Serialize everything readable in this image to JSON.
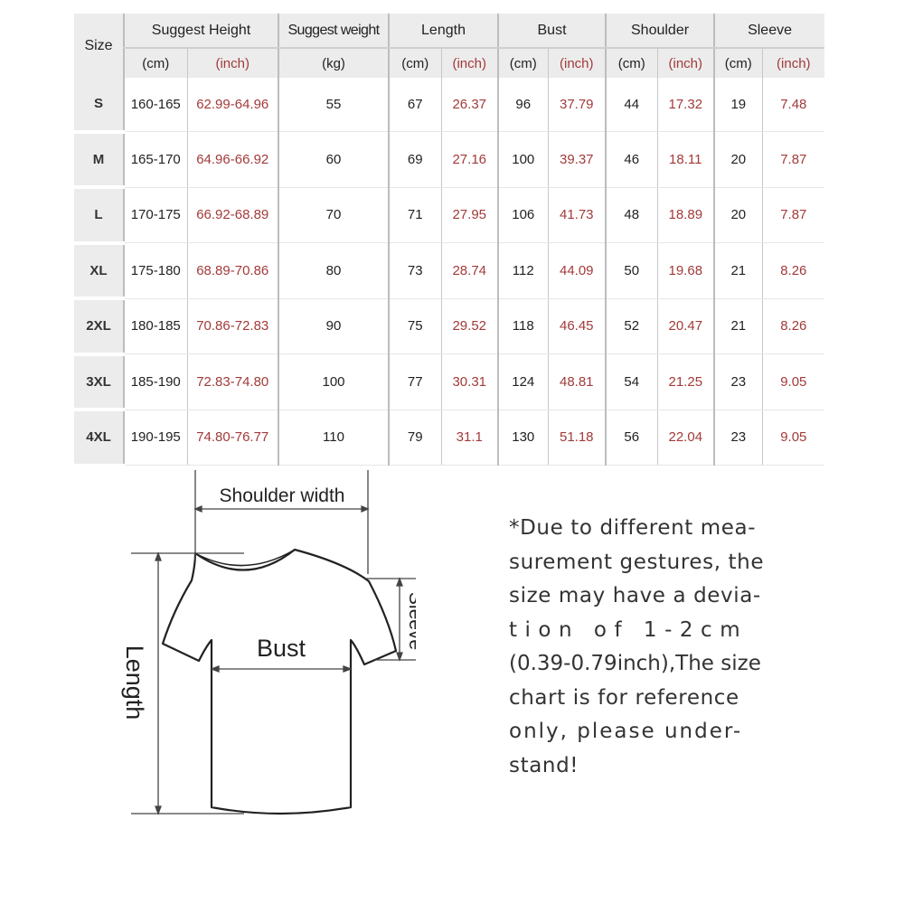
{
  "table": {
    "size_header": "Size",
    "groups": [
      "Suggest Height",
      "Suggest weight",
      "Length",
      "Bust",
      "Shoulder",
      "Sleeve"
    ],
    "units": {
      "cm": "(cm)",
      "inch": "(inch)",
      "kg": "(kg)"
    },
    "rows": [
      {
        "size": "S",
        "height_cm": "160-165",
        "height_in": "62.99-64.96",
        "weight": "55",
        "length_cm": "67",
        "length_in": "26.37",
        "bust_cm": "96",
        "bust_in": "37.79",
        "shoulder_cm": "44",
        "shoulder_in": "17.32",
        "sleeve_cm": "19",
        "sleeve_in": "7.48"
      },
      {
        "size": "M",
        "height_cm": "165-170",
        "height_in": "64.96-66.92",
        "weight": "60",
        "length_cm": "69",
        "length_in": "27.16",
        "bust_cm": "100",
        "bust_in": "39.37",
        "shoulder_cm": "46",
        "shoulder_in": "18.11",
        "sleeve_cm": "20",
        "sleeve_in": "7.87"
      },
      {
        "size": "L",
        "height_cm": "170-175",
        "height_in": "66.92-68.89",
        "weight": "70",
        "length_cm": "71",
        "length_in": "27.95",
        "bust_cm": "106",
        "bust_in": "41.73",
        "shoulder_cm": "48",
        "shoulder_in": "18.89",
        "sleeve_cm": "20",
        "sleeve_in": "7.87"
      },
      {
        "size": "XL",
        "height_cm": "175-180",
        "height_in": "68.89-70.86",
        "weight": "80",
        "length_cm": "73",
        "length_in": "28.74",
        "bust_cm": "112",
        "bust_in": "44.09",
        "shoulder_cm": "50",
        "shoulder_in": "19.68",
        "sleeve_cm": "21",
        "sleeve_in": "8.26"
      },
      {
        "size": "2XL",
        "height_cm": "180-185",
        "height_in": "70.86-72.83",
        "weight": "90",
        "length_cm": "75",
        "length_in": "29.52",
        "bust_cm": "118",
        "bust_in": "46.45",
        "shoulder_cm": "52",
        "shoulder_in": "20.47",
        "sleeve_cm": "21",
        "sleeve_in": "8.26"
      },
      {
        "size": "3XL",
        "height_cm": "185-190",
        "height_in": "72.83-74.80",
        "weight": "100",
        "length_cm": "77",
        "length_in": "30.31",
        "bust_cm": "124",
        "bust_in": "48.81",
        "shoulder_cm": "54",
        "shoulder_in": "21.25",
        "sleeve_cm": "23",
        "sleeve_in": "9.05"
      },
      {
        "size": "4XL",
        "height_cm": "190-195",
        "height_in": "74.80-76.77",
        "weight": "110",
        "length_cm": "79",
        "length_in": "31.1",
        "bust_cm": "130",
        "bust_in": "51.18",
        "shoulder_cm": "56",
        "shoulder_in": "22.04",
        "sleeve_cm": "23",
        "sleeve_in": "9.05"
      }
    ],
    "colors": {
      "inch_text": "#a33a3a",
      "header_bg": "#ececec"
    }
  },
  "diagram": {
    "shoulder_label": "Shoulder width",
    "bust_label": "Bust",
    "length_label": "Length",
    "sleeve_label": "Sleeve"
  },
  "note": {
    "lines": [
      "*Due to different mea-",
      "surement gestures, the",
      "size may have a devia-",
      "t i o n   o f   1 - 2 c m",
      "(0.39-0.79inch),The size",
      "chart is for reference",
      "only, please under-",
      "stand!"
    ]
  }
}
